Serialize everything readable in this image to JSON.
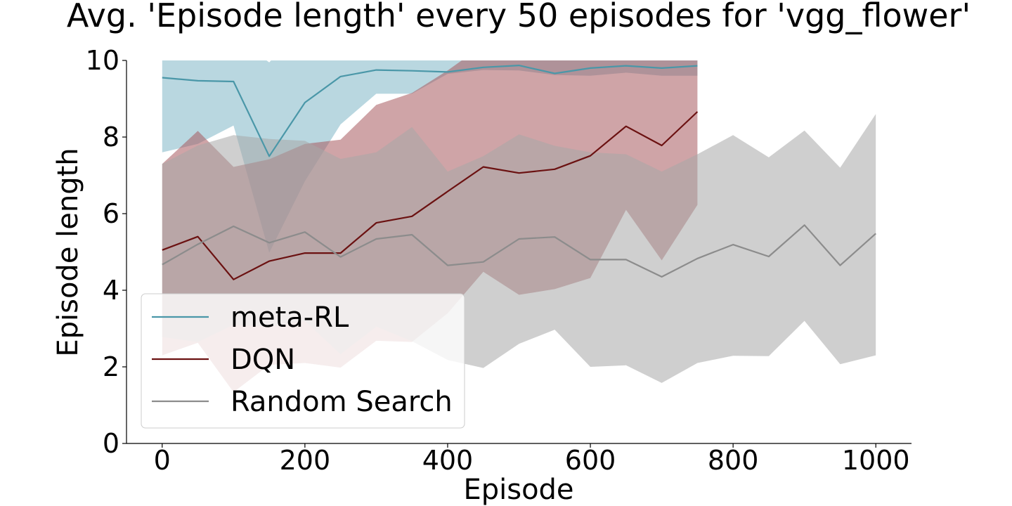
{
  "chart_data": {
    "type": "line",
    "title": "Avg. 'Episode length' every 50 episodes for 'vgg_flower'",
    "xlabel": "Episode",
    "ylabel": "Episode length",
    "xlim": [
      -50,
      1050
    ],
    "ylim": [
      0,
      10
    ],
    "xticks": [
      0,
      200,
      400,
      600,
      800,
      1000
    ],
    "yticks": [
      0,
      2,
      4,
      6,
      8,
      10
    ],
    "grid": false,
    "legend_position": "lower-left",
    "series": [
      {
        "name": "meta-RL",
        "color": "#4a97a8",
        "band_color": "#7fb6c6",
        "x": [
          0,
          50,
          100,
          150,
          200,
          250,
          300,
          350,
          400,
          450,
          500,
          550,
          600,
          650,
          700,
          750
        ],
        "values": [
          9.55,
          9.47,
          9.45,
          7.5,
          8.9,
          9.58,
          9.75,
          9.73,
          9.7,
          9.82,
          9.87,
          9.66,
          9.8,
          9.86,
          9.8,
          9.86
        ],
        "lower": [
          7.6,
          7.82,
          8.3,
          4.98,
          6.85,
          8.33,
          9.13,
          9.13,
          9.65,
          9.75,
          9.74,
          9.62,
          9.6,
          9.68,
          9.6,
          9.6
        ],
        "upper": [
          11.5,
          11.12,
          10.6,
          9.95,
          10.95,
          10.83,
          10.37,
          10.33,
          10.3,
          10.4,
          10.4,
          10.3,
          10.3,
          10.3,
          10.3,
          10.3
        ]
      },
      {
        "name": "DQN",
        "color": "#6b1111",
        "band_color": "#a85a5e",
        "x": [
          0,
          50,
          100,
          150,
          200,
          250,
          300,
          350,
          400,
          450,
          500,
          550,
          600,
          650,
          700,
          750
        ],
        "values": [
          5.05,
          5.4,
          4.28,
          4.76,
          4.97,
          4.97,
          5.76,
          5.93,
          6.58,
          7.22,
          7.06,
          7.16,
          7.51,
          8.28,
          7.78,
          8.66
        ],
        "lower": [
          2.3,
          2.63,
          1.34,
          2.05,
          2.1,
          1.98,
          2.68,
          2.65,
          3.4,
          4.48,
          3.88,
          4.03,
          4.32,
          6.1,
          4.78,
          6.23
        ],
        "upper": [
          7.3,
          8.16,
          7.22,
          7.42,
          7.82,
          7.93,
          8.84,
          9.15,
          9.74,
          10.4,
          10.53,
          10.4,
          10.4,
          10.4,
          10.4,
          10.4
        ]
      },
      {
        "name": "Random Search",
        "color": "#8c8c8c",
        "band_color": "#a8a8a8",
        "x": [
          0,
          50,
          100,
          150,
          200,
          250,
          300,
          350,
          400,
          450,
          500,
          550,
          600,
          650,
          700,
          750,
          800,
          850,
          900,
          950,
          1000
        ],
        "values": [
          4.67,
          5.2,
          5.67,
          5.24,
          5.52,
          4.87,
          5.34,
          5.45,
          4.65,
          4.74,
          5.34,
          5.39,
          4.8,
          4.8,
          4.35,
          4.83,
          5.19,
          4.88,
          5.7,
          4.65,
          5.48
        ],
        "lower": [
          2.78,
          2.65,
          3.1,
          3.05,
          3.2,
          2.33,
          3.05,
          2.67,
          2.18,
          1.97,
          2.6,
          2.97,
          2.0,
          2.04,
          1.58,
          2.1,
          2.29,
          2.28,
          3.2,
          2.07,
          2.3
        ],
        "upper": [
          7.3,
          7.78,
          8.05,
          7.95,
          7.9,
          7.43,
          7.6,
          8.26,
          7.1,
          7.5,
          8.07,
          7.77,
          7.6,
          7.55,
          7.1,
          7.55,
          8.05,
          7.47,
          8.17,
          7.2,
          8.6
        ]
      }
    ]
  }
}
